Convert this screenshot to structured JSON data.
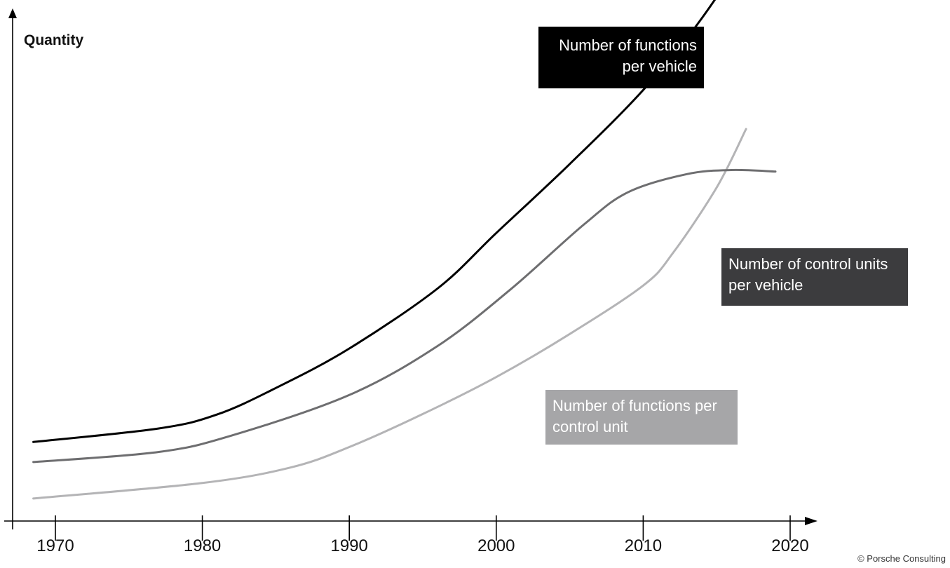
{
  "chart_data": {
    "type": "line",
    "ylabel": "Quantity",
    "xlabel": "",
    "x_ticks": [
      1970,
      1980,
      1990,
      2000,
      2010,
      2020
    ],
    "xlim": [
      1968,
      2021
    ],
    "ylim": [
      0,
      100
    ],
    "grid": false,
    "series": [
      {
        "name": "Number of functions per vehicle",
        "color": "#000000",
        "label_bg": "#000000",
        "points": [
          [
            1968.5,
            15.8
          ],
          [
            1977,
            18.5
          ],
          [
            1981,
            21.3
          ],
          [
            1985,
            26.6
          ],
          [
            1990,
            34.5
          ],
          [
            1996,
            46.5
          ],
          [
            2000,
            57.6
          ],
          [
            2005,
            71.4
          ],
          [
            2010,
            86.2
          ],
          [
            2014,
            100.6
          ],
          [
            2019,
            122.5
          ]
        ]
      },
      {
        "name": "Number of control units per vehicle",
        "color": "#6e6e70",
        "label_bg": "#3c3c3e",
        "points": [
          [
            1968.5,
            11.8
          ],
          [
            1977,
            13.8
          ],
          [
            1982,
            17.1
          ],
          [
            1990,
            25.2
          ],
          [
            1996,
            35.0
          ],
          [
            2001,
            46.4
          ],
          [
            2006,
            59.4
          ],
          [
            2009,
            65.8
          ],
          [
            2013,
            69.4
          ],
          [
            2016,
            70.2
          ],
          [
            2019,
            69.9
          ]
        ]
      },
      {
        "name": "Number of functions per control unit",
        "color": "#b4b4b6",
        "label_bg": "#a6a6a8",
        "points": [
          [
            1968.5,
            4.5
          ],
          [
            1980,
            7.6
          ],
          [
            1986,
            10.7
          ],
          [
            1990,
            14.8
          ],
          [
            1995,
            21.4
          ],
          [
            2000,
            28.8
          ],
          [
            2005,
            37.4
          ],
          [
            2010,
            47.1
          ],
          [
            2012,
            53.5
          ],
          [
            2015,
            66.7
          ],
          [
            2017,
            78.4
          ]
        ]
      }
    ]
  },
  "series_labels": [
    {
      "line1": "Number of functions",
      "line2": "per vehicle",
      "bg": "#000000"
    },
    {
      "line1": "Number of control units",
      "line2": "per vehicle",
      "bg": "#3c3c3e"
    },
    {
      "line1": "Number of functions per",
      "line2": "control unit",
      "bg": "#a6a6a8"
    }
  ],
  "copyright": "© Porsche Consulting"
}
